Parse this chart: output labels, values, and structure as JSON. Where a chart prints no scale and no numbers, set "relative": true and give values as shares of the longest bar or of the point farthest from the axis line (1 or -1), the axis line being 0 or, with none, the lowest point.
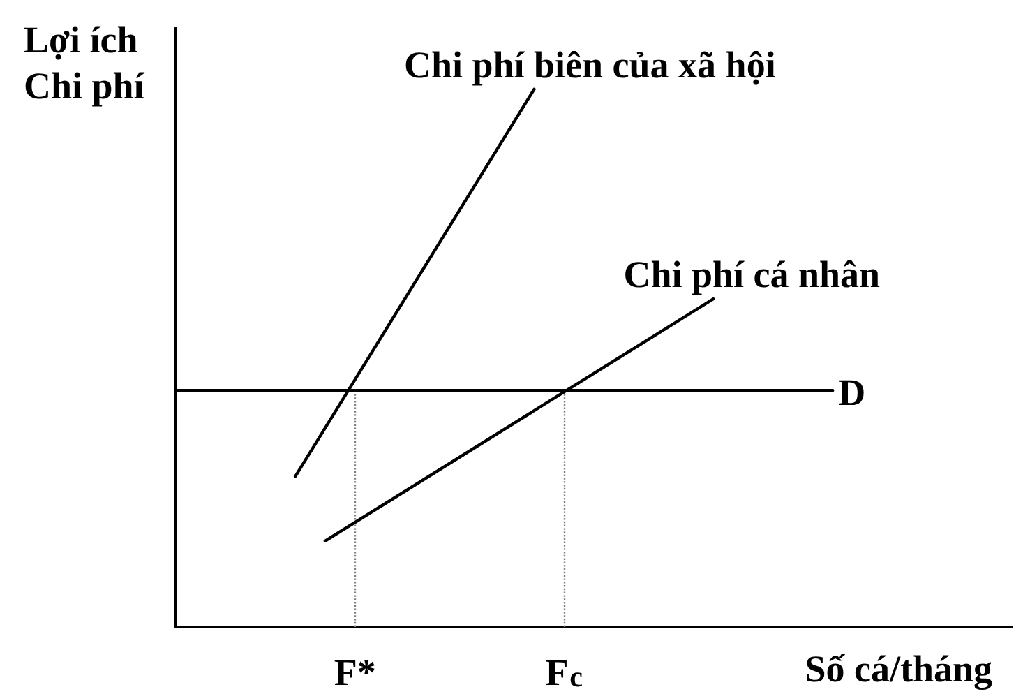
{
  "chart_data": {
    "type": "line",
    "relative": true,
    "ylabel": "Lợi ích\nChi phí",
    "xlabel": "Số cá/tháng",
    "categories": [
      null,
      null,
      null,
      null,
      null,
      null,
      "F*",
      null,
      null,
      null,
      null,
      null,
      null,
      "F$_{c}$",
      null,
      null,
      null,
      null,
      null,
      null,
      null,
      null,
      null,
      null,
      null,
      null,
      null,
      null,
      null
    ],
    "series": [
      {
        "name": "Chi phí biên của xã hội",
        "color": "#000000",
        "values": [
          null,
          null,
          null,
          null,
          0.28,
          null,
          null,
          null,
          null,
          null,
          null,
          null,
          1,
          null,
          null,
          null,
          null,
          null,
          null,
          null,
          null,
          null,
          null,
          null,
          null,
          null,
          null,
          null,
          null
        ]
      },
      {
        "name": "Chi phí cá nhân",
        "color": "#000000",
        "values": [
          null,
          null,
          null,
          null,
          null,
          0.16,
          null,
          null,
          null,
          null,
          null,
          null,
          null,
          null,
          null,
          null,
          null,
          null,
          0.61,
          null,
          null,
          null,
          null,
          null,
          null,
          null,
          null,
          null,
          null
        ]
      },
      {
        "name": "D",
        "color": "#000000",
        "values": [
          0.44,
          null,
          null,
          null,
          null,
          null,
          0.44,
          null,
          null,
          null,
          null,
          null,
          null,
          0.44,
          null,
          null,
          null,
          null,
          null,
          null,
          null,
          null,
          0.44,
          null,
          null,
          null,
          null,
          null,
          null
        ]
      }
    ],
    "ref_lines": [
      {
        "axis": "x",
        "value": "F*",
        "color": "#808080",
        "line_style": "dotted"
      },
      {
        "axis": "x",
        "value": "F$_{c}$",
        "color": "#808080",
        "line_style": "dotted"
      }
    ],
    "line_style": "solid",
    "tick_labels": "x"
  }
}
